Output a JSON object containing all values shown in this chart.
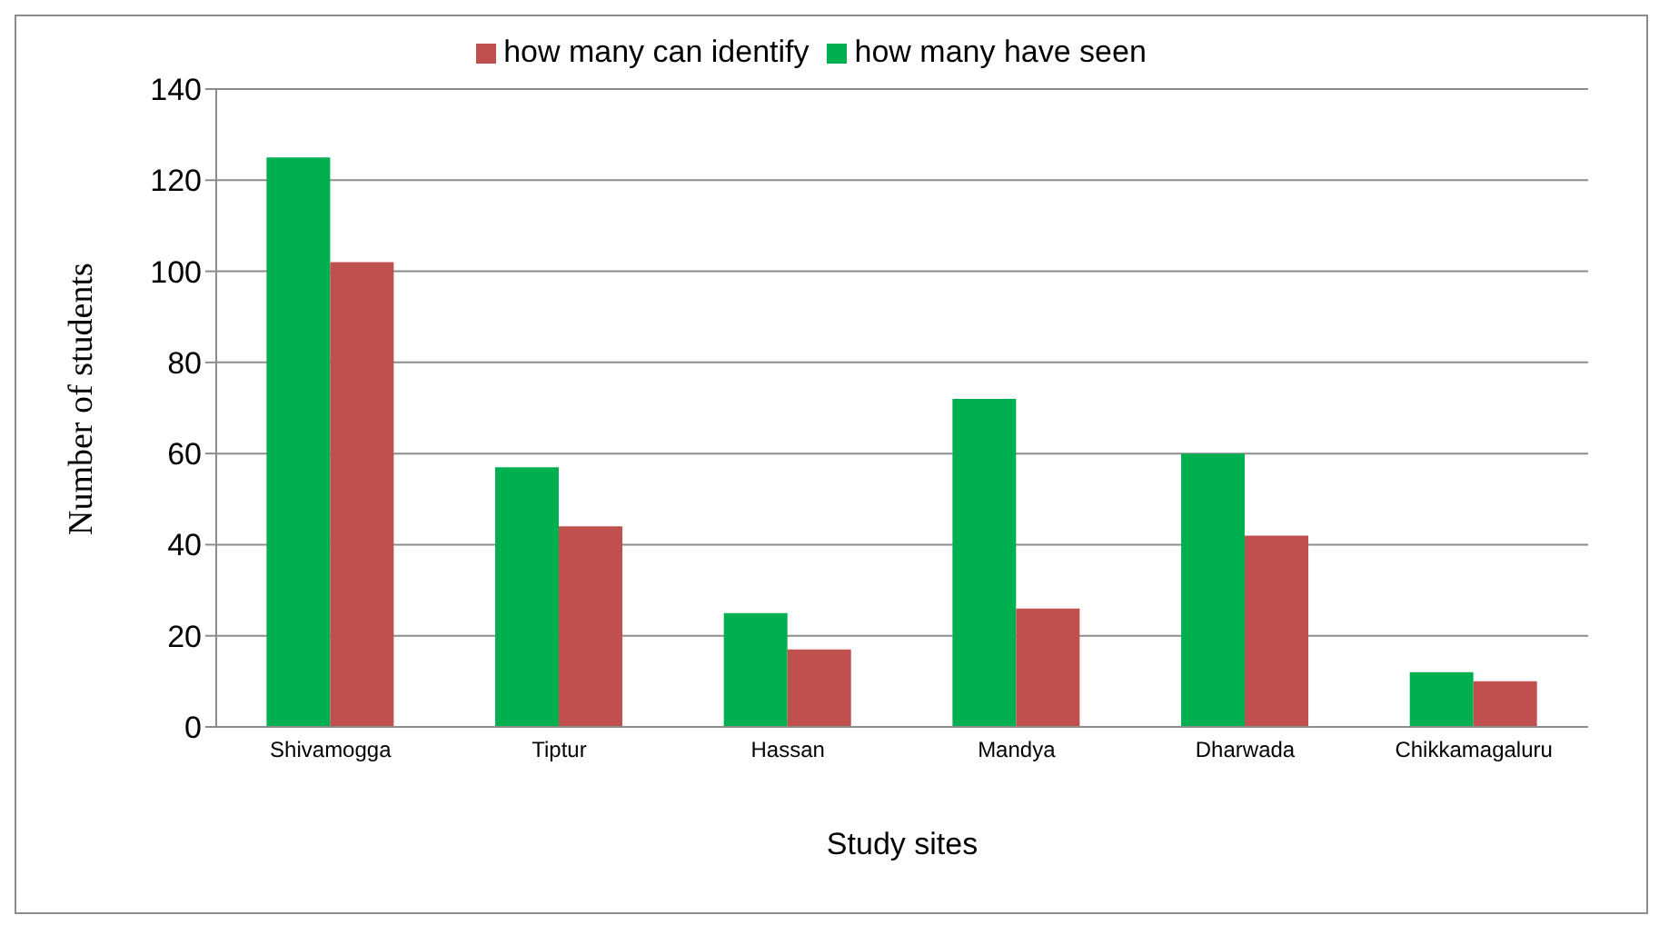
{
  "chart_data": {
    "type": "bar",
    "xlabel": "Study sites",
    "ylabel": "Number of students",
    "categories": [
      "Shivamogga",
      "Tiptur",
      "Hassan",
      "Mandya",
      "Dharwada",
      "Chikkamagaluru"
    ],
    "series": [
      {
        "name": "how many have seen",
        "color": "#00b050",
        "values": [
          125,
          57,
          25,
          72,
          60,
          12
        ]
      },
      {
        "name": "how many can identify",
        "color": "#c0504d",
        "values": [
          102,
          44,
          17,
          26,
          42,
          10
        ]
      }
    ],
    "ylim": [
      0,
      140
    ],
    "yticks": [
      0,
      20,
      40,
      60,
      80,
      100,
      120,
      140
    ],
    "grid": "y",
    "legend": "top"
  }
}
